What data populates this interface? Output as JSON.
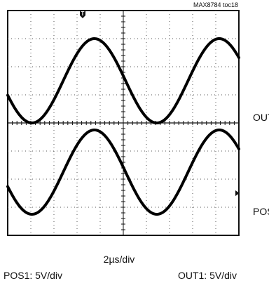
{
  "chart_data": {
    "type": "line",
    "chart_id": "MAX8784 toc18",
    "x_scale_label": "2µs/div",
    "scale_labels": {
      "pos1": "POS1: 5V/div",
      "out1": "OUT1: 5V/div"
    },
    "grid": "dotted 10x8 divisions",
    "x_range_div": [
      0,
      10
    ],
    "y_range_div": [
      0,
      8
    ],
    "trigger_marker": "T",
    "series": [
      {
        "name": "OUT1",
        "waveform": "sine",
        "amplitude_div": 1.5,
        "center_div": 1.5,
        "period_div": 5.4,
        "peak_at_div": 3.75,
        "color": "#000000"
      },
      {
        "name": "POS1",
        "waveform": "sine",
        "amplitude_div": 1.5,
        "center_div": -1.75,
        "period_div": 5.4,
        "peak_at_div": 3.75,
        "color": "#000000"
      }
    ]
  },
  "colors": {
    "trace": "#000000",
    "grid": "#555555",
    "frame": "#111111",
    "background": "#ffffff"
  }
}
